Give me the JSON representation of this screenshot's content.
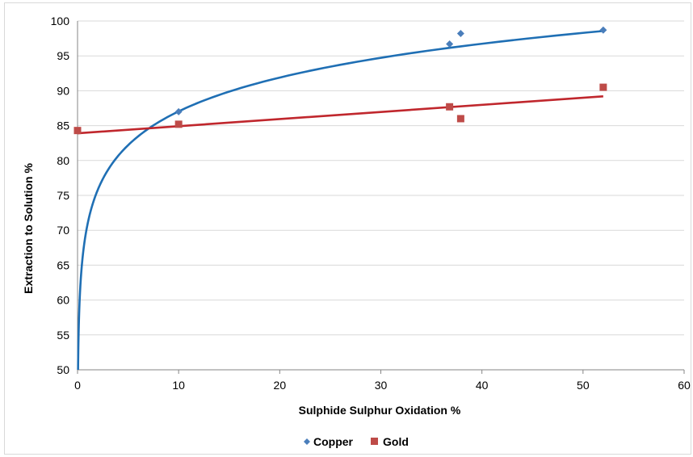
{
  "chart_data": {
    "type": "scatter",
    "title": "",
    "xlabel": "Sulphide Sulphur Oxidation %",
    "ylabel": "Extraction to Solution %",
    "xlim": [
      0,
      60
    ],
    "ylim": [
      50,
      100
    ],
    "x_ticks": [
      "0",
      "10",
      "20",
      "30",
      "40",
      "50",
      "60"
    ],
    "y_ticks": [
      "50",
      "55",
      "60",
      "65",
      "70",
      "75",
      "80",
      "85",
      "90",
      "95",
      "100"
    ],
    "grid": "horizontal",
    "legend_position": "bottom",
    "series": [
      {
        "name": "Copper",
        "marker": "diamond",
        "color": "#4a7ebb",
        "points": [
          [
            10,
            87.0
          ],
          [
            36.8,
            96.7
          ],
          [
            37.9,
            98.2
          ],
          [
            52.0,
            98.7
          ]
        ],
        "trendline": {
          "type": "logarithmic",
          "color": "#1f6fb4",
          "points": [
            [
              0.05,
              50
            ],
            [
              0.1,
              54.84
            ],
            [
              0.25,
              61.25
            ],
            [
              0.5,
              66.09
            ],
            [
              1,
              70.94
            ],
            [
              2,
              75.79
            ],
            [
              3,
              78.62
            ],
            [
              5,
              82.19
            ],
            [
              7.5,
              85.03
            ],
            [
              10,
              87.04
            ],
            [
              15,
              89.88
            ],
            [
              20,
              91.89
            ],
            [
              25,
              93.45
            ],
            [
              30,
              94.72
            ],
            [
              35,
              95.8
            ],
            [
              40,
              96.73
            ],
            [
              45,
              97.56
            ],
            [
              52,
              98.57
            ]
          ]
        }
      },
      {
        "name": "Gold",
        "marker": "square",
        "color": "#be4b48",
        "points": [
          [
            0,
            84.3
          ],
          [
            10,
            85.2
          ],
          [
            36.8,
            87.7
          ],
          [
            37.9,
            86.0
          ],
          [
            52.0,
            90.5
          ]
        ],
        "trendline": {
          "type": "linear",
          "color": "#c0272d",
          "points": [
            [
              0,
              83.9
            ],
            [
              52,
              89.2
            ]
          ]
        }
      }
    ]
  }
}
